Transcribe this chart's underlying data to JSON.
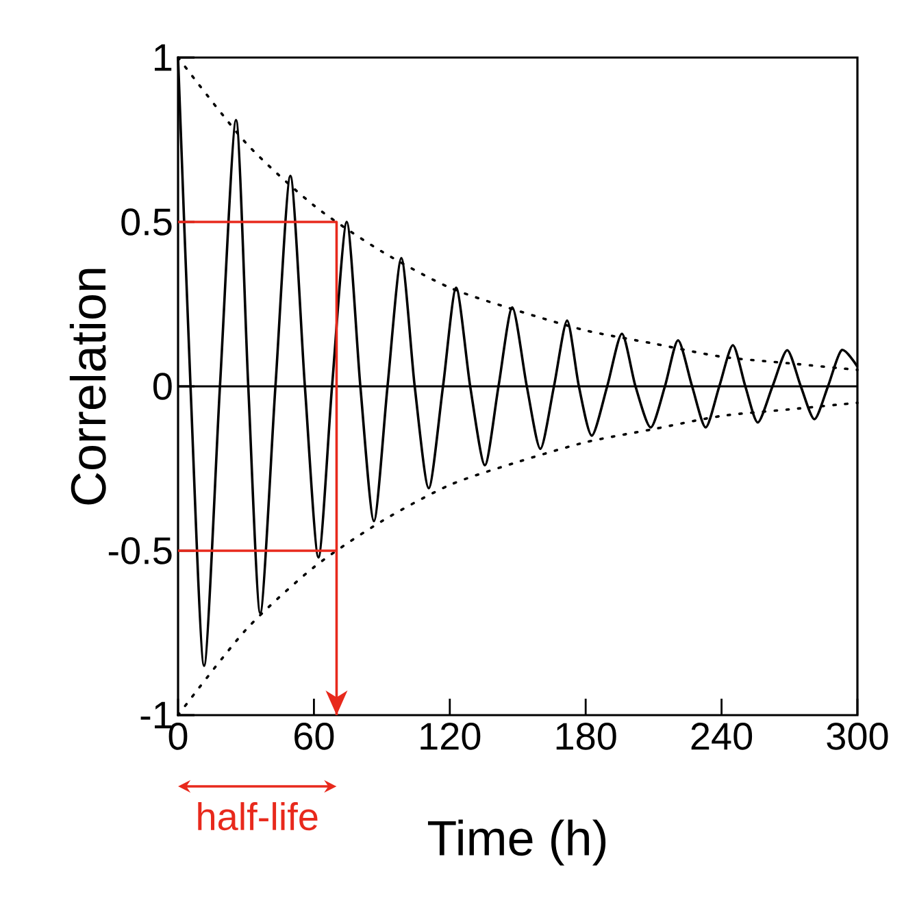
{
  "chart_data": {
    "type": "line",
    "xlabel": "Time (h)",
    "ylabel": "Correlation",
    "xlim": [
      0,
      300
    ],
    "ylim": [
      -1,
      1
    ],
    "xticks": [
      0,
      60,
      120,
      180,
      240,
      300
    ],
    "yticks": [
      -1,
      -0.5,
      0,
      0.5,
      1
    ],
    "marker": "none",
    "ref_lines": [
      {
        "axis": "y",
        "value": 0,
        "color": "#000000"
      }
    ],
    "annotations": [
      "half-life"
    ],
    "series": [
      {
        "color": "#000000",
        "line_style": "solid",
        "x": [
          0,
          5.5,
          11.5,
          18.5,
          25.6,
          31,
          36.3,
          43,
          49.6,
          56,
          62,
          68,
          74.5,
          80.5,
          86.5,
          92.5,
          98.6,
          104.5,
          110.7,
          117,
          122.8,
          129,
          135.5,
          141.5,
          147.6,
          154,
          160,
          166,
          171.8,
          177,
          182.7,
          189.5,
          196,
          202,
          208.7,
          215,
          220.8,
          227,
          233,
          239,
          245,
          250.5,
          256,
          262.5,
          269,
          275,
          281,
          287,
          293,
          300
        ],
        "values": [
          1.0,
          0,
          -0.85,
          0,
          0.81,
          0,
          -0.69,
          0,
          0.64,
          0,
          -0.52,
          0,
          0.5,
          0,
          -0.41,
          0,
          0.39,
          0,
          -0.31,
          0,
          0.3,
          0,
          -0.24,
          0,
          0.24,
          0,
          -0.19,
          0,
          0.2,
          0,
          -0.15,
          0,
          0.16,
          0,
          -0.125,
          0,
          0.14,
          0,
          -0.125,
          0,
          0.125,
          0,
          -0.11,
          0,
          0.11,
          0,
          -0.1,
          0,
          0.11,
          0.06
        ]
      },
      {
        "color": "#000000",
        "line_style": "dotted",
        "x": [
          0,
          30,
          60,
          90,
          120,
          150,
          180,
          210,
          240,
          270,
          300
        ],
        "values": [
          1.0,
          0.74,
          0.55,
          0.41,
          0.3,
          0.23,
          0.17,
          0.13,
          0.09,
          0.07,
          0.05
        ]
      },
      {
        "color": "#000000",
        "line_style": "dotted",
        "x": [
          0,
          30,
          60,
          90,
          120,
          150,
          180,
          210,
          240,
          270,
          300
        ],
        "values": [
          -1.0,
          -0.74,
          -0.55,
          -0.41,
          -0.3,
          -0.23,
          -0.17,
          -0.13,
          -0.09,
          -0.07,
          -0.05
        ]
      },
      {
        "color": "#e8291c",
        "line_style": "solid",
        "x": [
          0,
          70
        ],
        "values": [
          -0.5,
          -0.5
        ]
      },
      {
        "color": "#e8291c",
        "line_style": "solid",
        "x": [
          0,
          70,
          70
        ],
        "values": [
          0.5,
          0.5,
          -1
        ]
      }
    ]
  }
}
